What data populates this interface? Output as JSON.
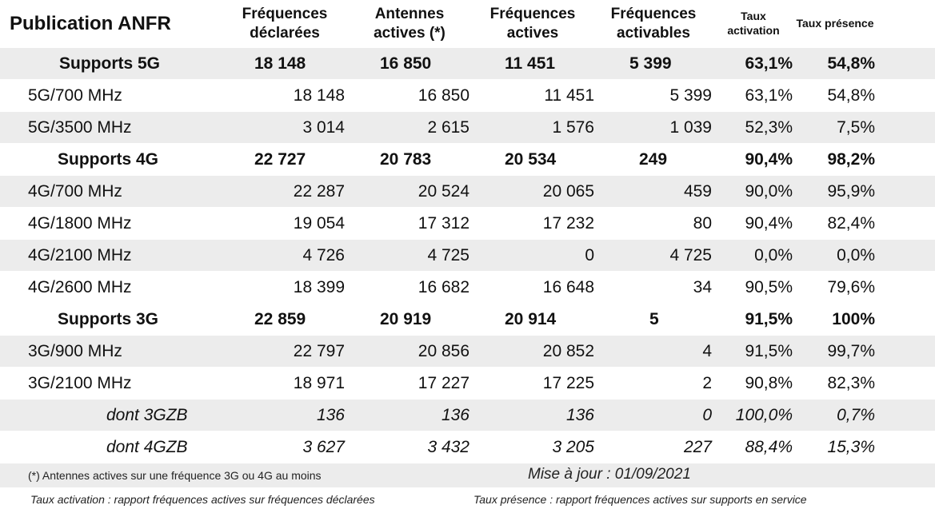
{
  "header": {
    "title": "Publication ANFR",
    "col1_l1": "Fréquences",
    "col1_l2": "déclarées",
    "col2_l1": "Antennes",
    "col2_l2": "actives (*)",
    "col3_l1": "Fréquences",
    "col3_l2": "actives",
    "col4_l1": "Fréquences",
    "col4_l2": "activables",
    "col5_l1": "Taux",
    "col5_l2": "activation",
    "col6": "Taux présence"
  },
  "rows": [
    {
      "label": "Supports 5G",
      "declared": "18 148",
      "antennas": "16 850",
      "active": "11 451",
      "activatable": "5 399",
      "activation": "63,1%",
      "presence": "54,8%"
    },
    {
      "label": "5G/700 MHz",
      "declared": "18 148",
      "antennas": "16 850",
      "active": "11 451",
      "activatable": "5 399",
      "activation": "63,1%",
      "presence": "54,8%"
    },
    {
      "label": "5G/3500 MHz",
      "declared": "3 014",
      "antennas": "2 615",
      "active": "1 576",
      "activatable": "1 039",
      "activation": "52,3%",
      "presence": "7,5%"
    },
    {
      "label": "Supports 4G",
      "declared": "22 727",
      "antennas": "20 783",
      "active": "20 534",
      "activatable": "249",
      "activation": "90,4%",
      "presence": "98,2%"
    },
    {
      "label": "4G/700 MHz",
      "declared": "22 287",
      "antennas": "20 524",
      "active": "20 065",
      "activatable": "459",
      "activation": "90,0%",
      "presence": "95,9%"
    },
    {
      "label": "4G/1800 MHz",
      "declared": "19 054",
      "antennas": "17 312",
      "active": "17 232",
      "activatable": "80",
      "activation": "90,4%",
      "presence": "82,4%"
    },
    {
      "label": "4G/2100 MHz",
      "declared": "4 726",
      "antennas": "4 725",
      "active": "0",
      "activatable": "4 725",
      "activation": "0,0%",
      "presence": "0,0%"
    },
    {
      "label": "4G/2600 MHz",
      "declared": "18 399",
      "antennas": "16 682",
      "active": "16 648",
      "activatable": "34",
      "activation": "90,5%",
      "presence": "79,6%"
    },
    {
      "label": "Supports 3G",
      "declared": "22 859",
      "antennas": "20 919",
      "active": "20 914",
      "activatable": "5",
      "activation": "91,5%",
      "presence": "100%"
    },
    {
      "label": "3G/900 MHz",
      "declared": "22 797",
      "antennas": "20 856",
      "active": "20 852",
      "activatable": "4",
      "activation": "91,5%",
      "presence": "99,7%"
    },
    {
      "label": "3G/2100 MHz",
      "declared": "18 971",
      "antennas": "17 227",
      "active": "17 225",
      "activatable": "2",
      "activation": "90,8%",
      "presence": "82,3%"
    },
    {
      "label": "dont 3GZB",
      "declared": "136",
      "antennas": "136",
      "active": "136",
      "activatable": "0",
      "activation": "100,0%",
      "presence": "0,7%"
    },
    {
      "label": "dont 4GZB",
      "declared": "3 627",
      "antennas": "3 432",
      "active": "3 205",
      "activatable": "227",
      "activation": "88,4%",
      "presence": "15,3%"
    }
  ],
  "footer": {
    "antennas_note": "(*) Antennes actives sur une fréquence 3G ou 4G au moins",
    "update": "Mise à jour : 01/09/2021",
    "activation_note": "Taux activation : rapport fréquences actives sur fréquences déclarées",
    "presence_note": "Taux présence : rapport fréquences actives sur supports en service"
  }
}
